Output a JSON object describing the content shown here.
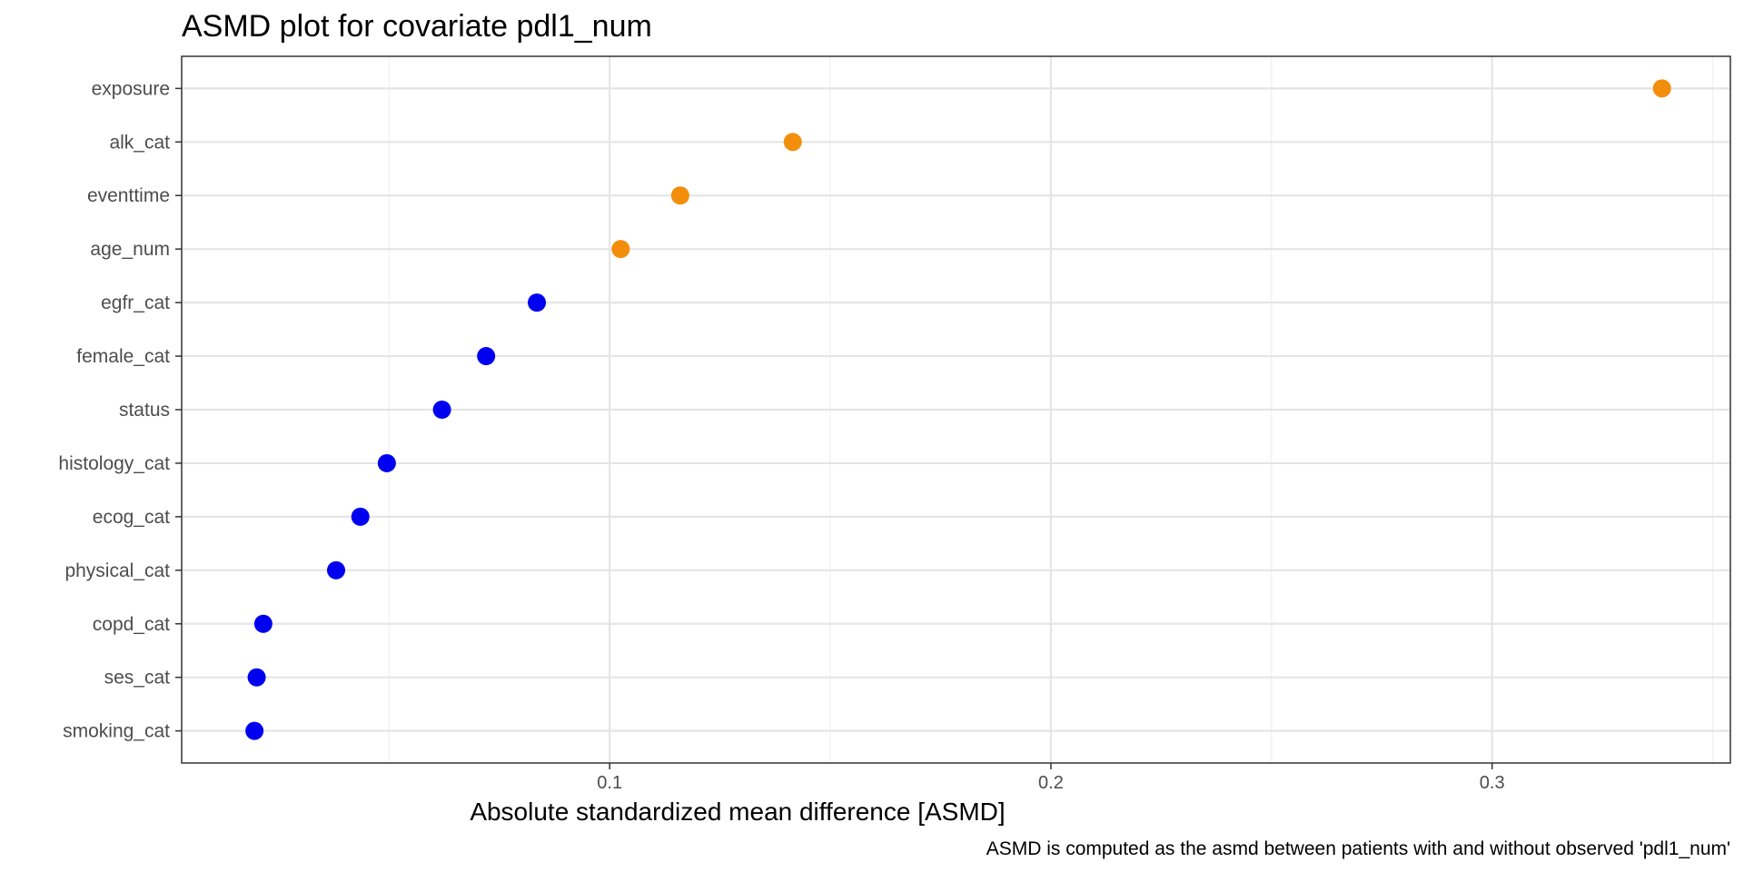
{
  "chart_data": {
    "type": "scatter",
    "title": "ASMD plot for covariate pdl1_num",
    "xlabel": "Absolute standardized mean difference [ASMD]",
    "ylabel": "",
    "caption": "ASMD is computed as the asmd between patients with and without observed 'pdl1_num'",
    "xlim": [
      0.003,
      0.354
    ],
    "x_ticks": [
      0.1,
      0.2,
      0.3
    ],
    "x_tick_labels": [
      "0.1",
      "0.2",
      "0.3"
    ],
    "grid": true,
    "legend": "none",
    "threshold": 0.1,
    "colors": {
      "above": "#F28E0C",
      "below": "#0000F0"
    },
    "categories": [
      "exposure",
      "alk_cat",
      "eventtime",
      "age_num",
      "egfr_cat",
      "female_cat",
      "status",
      "histology_cat",
      "ecog_cat",
      "physical_cat",
      "copd_cat",
      "ses_cat",
      "smoking_cat"
    ],
    "values": [
      0.3385,
      0.1415,
      0.116,
      0.1025,
      0.0835,
      0.072,
      0.062,
      0.0495,
      0.0435,
      0.038,
      0.0215,
      0.02,
      0.0195
    ]
  }
}
